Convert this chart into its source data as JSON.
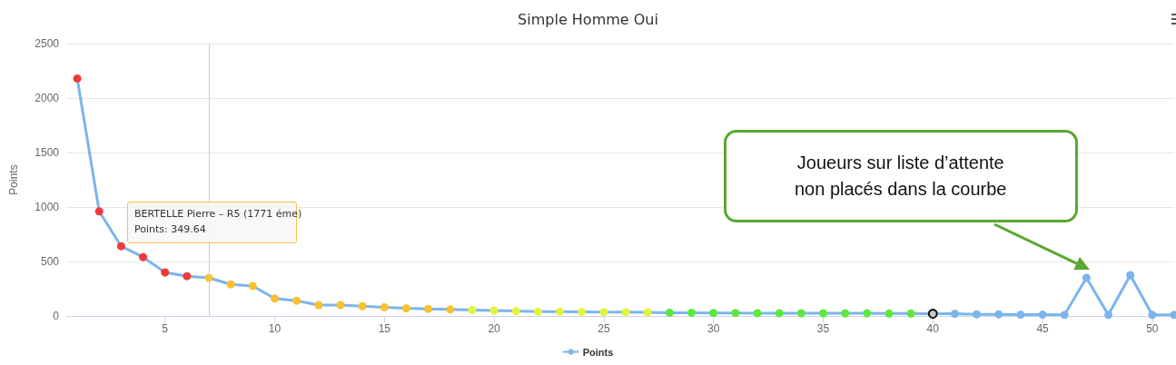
{
  "chart_data": {
    "type": "line",
    "title": "Simple Homme Oui",
    "ylabel": "Points",
    "x": [
      1,
      2,
      3,
      4,
      5,
      6,
      7,
      8,
      9,
      10,
      11,
      12,
      13,
      14,
      15,
      16,
      17,
      18,
      19,
      20,
      21,
      22,
      23,
      24,
      25,
      26,
      27,
      28,
      29,
      30,
      31,
      32,
      33,
      34,
      35,
      36,
      37,
      38,
      39,
      40,
      41,
      42,
      43,
      44,
      45,
      46,
      47,
      48,
      49,
      50,
      51
    ],
    "series": [
      {
        "name": "Points",
        "color": "#7cb5ec",
        "values": [
          2180,
          960,
          640,
          540,
          400,
          365,
          349.64,
          290,
          275,
          160,
          140,
          100,
          100,
          90,
          80,
          70,
          65,
          60,
          55,
          50,
          45,
          40,
          40,
          38,
          36,
          35,
          34,
          30,
          30,
          28,
          28,
          26,
          26,
          25,
          25,
          24,
          24,
          22,
          22,
          20,
          20,
          15,
          15,
          12,
          12,
          10,
          350,
          10,
          375,
          10,
          10
        ],
        "colors": [
          "#f03a3a",
          "#f03a3a",
          "#f03a3a",
          "#f03a3a",
          "#f03a3a",
          "#f03a3a",
          "#f8c22e",
          "#f8c22e",
          "#f8c22e",
          "#f8c22e",
          "#f8c22e",
          "#f8c22e",
          "#f8c22e",
          "#f8c22e",
          "#f8c22e",
          "#f8c22e",
          "#f8c22e",
          "#f8c22e",
          "#e2f53a",
          "#e2f53a",
          "#e2f53a",
          "#e2f53a",
          "#e2f53a",
          "#e2f53a",
          "#e2f53a",
          "#e2f53a",
          "#e2f53a",
          "#5ee83a",
          "#5ee83a",
          "#5ee83a",
          "#5ee83a",
          "#5ee83a",
          "#5ee83a",
          "#5ee83a",
          "#5ee83a",
          "#5ee83a",
          "#5ee83a",
          "#5ee83a",
          "#5ee83a",
          "#c8c8c8",
          "#7cb5ec",
          "#7cb5ec",
          "#7cb5ec",
          "#7cb5ec",
          "#7cb5ec",
          "#7cb5ec",
          "#7cb5ec",
          "#7cb5ec",
          "#7cb5ec",
          "#7cb5ec",
          "#7cb5ec"
        ]
      }
    ],
    "xlim": [
      0.5,
      51
    ],
    "xticks": [
      5,
      10,
      15,
      20,
      25,
      30,
      35,
      40,
      45,
      50
    ],
    "ylim": [
      0,
      2500
    ],
    "yticks": [
      0,
      500,
      1000,
      1500,
      2000,
      2500
    ],
    "ref_lines": [
      {
        "axis": "x",
        "value": 7,
        "color": "#cccccc"
      }
    ],
    "annotations": [
      "BERTELLE Pierre – R5 (1771 éme)\nPoints: 349.64",
      "Joueurs sur liste d’attente\nnon placés dans la courbe"
    ],
    "grid": "y",
    "legend": "bottom",
    "marker": "circle",
    "line_style": "solid"
  }
}
